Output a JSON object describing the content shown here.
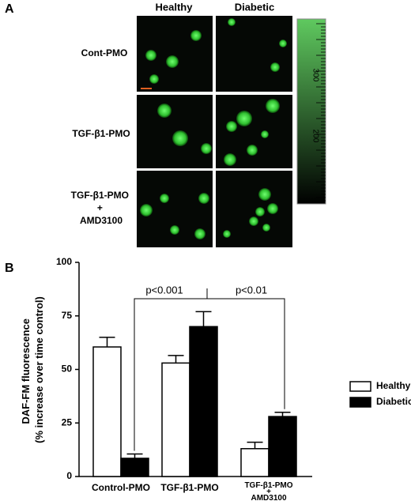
{
  "panel_a": {
    "label": "A",
    "columns": [
      "Healthy",
      "Diabetic"
    ],
    "rows": [
      [
        "Cont-PMO"
      ],
      [
        "TGF-β1-PMO"
      ],
      [
        "TGF-β1-PMO",
        "+",
        "AMD3100"
      ]
    ],
    "scale_labels": [
      "300",
      "200"
    ]
  },
  "chart_data": {
    "type": "bar",
    "label": "B",
    "ylabel": [
      "DAF-FM fluorescence",
      "(% increase over time control)"
    ],
    "categories": [
      [
        "Control-PMO"
      ],
      [
        "TGF-β1-PMO"
      ],
      [
        "TGF-β1-PMO",
        "+",
        "AMD3100"
      ]
    ],
    "series": [
      {
        "name": "Healthy",
        "color": "#ffffff",
        "values": [
          60.5,
          53,
          13
        ],
        "errors": [
          4.5,
          3.5,
          3
        ]
      },
      {
        "name": "Diabetic",
        "color": "#000000",
        "values": [
          8.5,
          70,
          28
        ],
        "errors": [
          2,
          7,
          2
        ]
      }
    ],
    "ylim": [
      0,
      100
    ],
    "yticks": [
      0,
      25,
      50,
      75,
      100
    ],
    "annotations": [
      "p<0.001",
      "p<0.01"
    ],
    "legend": "right"
  }
}
